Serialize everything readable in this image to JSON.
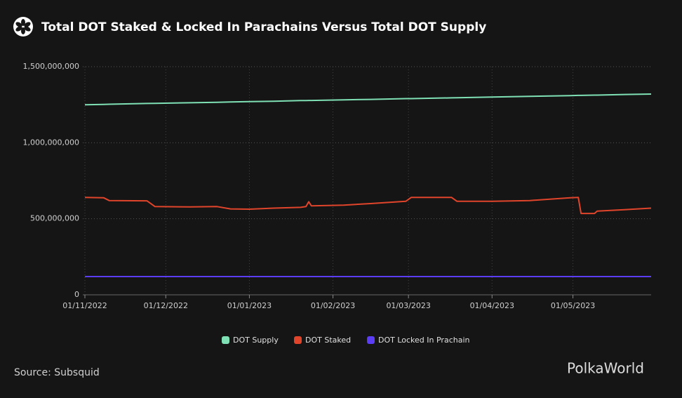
{
  "chart_data": {
    "type": "line",
    "title": "Total DOT Staked & Locked In Parachains Versus Total DOT Supply",
    "source": "Source: Subsquid",
    "watermark": "PolkaWorld",
    "x": [
      "01/11/2022",
      "08/11/2022",
      "10/11/2022",
      "24/11/2022",
      "27/11/2022",
      "10/12/2022",
      "20/12/2022",
      "25/12/2022",
      "01/01/2023",
      "10/01/2023",
      "20/01/2023",
      "22/01/2023",
      "23/01/2023",
      "24/01/2023",
      "05/02/2023",
      "15/02/2023",
      "28/02/2023",
      "02/03/2023",
      "17/03/2023",
      "19/03/2023",
      "01/04/2023",
      "15/04/2023",
      "30/04/2023",
      "03/05/2023",
      "04/05/2023",
      "09/05/2023",
      "10/05/2023",
      "20/05/2023",
      "30/05/2023"
    ],
    "xlim": [
      "01/11/2022",
      "30/05/2023"
    ],
    "xticks": [
      "01/11/2022",
      "01/12/2022",
      "01/01/2023",
      "01/02/2023",
      "01/03/2023",
      "01/04/2023",
      "01/05/2023"
    ],
    "ylim": [
      0,
      1500000000
    ],
    "yticks": [
      0,
      {
        "value": 500000000,
        "label": "500,000,000"
      },
      {
        "value": 1000000000,
        "label": "1,000,000,000"
      },
      {
        "value": 1500000000,
        "label": "1,500,000,000"
      }
    ],
    "grid": true,
    "legend": "bottom",
    "series": [
      {
        "name": "DOT Supply",
        "color": "#7ee0b4",
        "values": [
          1250000000,
          1252000000,
          1253000000,
          1258000000,
          1259000000,
          1263000000,
          1266000000,
          1268000000,
          1270000000,
          1273000000,
          1277000000,
          1277000000,
          1278000000,
          1278000000,
          1282000000,
          1285000000,
          1290000000,
          1290000000,
          1295000000,
          1296000000,
          1300000000,
          1305000000,
          1310000000,
          1311000000,
          1311000000,
          1313000000,
          1313000000,
          1317000000,
          1320000000
        ]
      },
      {
        "name": "DOT Staked",
        "color": "#e0452b",
        "values": [
          640000000,
          638000000,
          620000000,
          618000000,
          580000000,
          578000000,
          580000000,
          565000000,
          563000000,
          570000000,
          575000000,
          580000000,
          612000000,
          585000000,
          590000000,
          600000000,
          615000000,
          640000000,
          640000000,
          615000000,
          615000000,
          620000000,
          638000000,
          640000000,
          535000000,
          535000000,
          550000000,
          560000000,
          570000000
        ]
      },
      {
        "name": "DOT Locked In Prachain",
        "color": "#5b3df5",
        "values": [
          120000000,
          120000000,
          120000000,
          120000000,
          120000000,
          120000000,
          120000000,
          120000000,
          120000000,
          120000000,
          120000000,
          120000000,
          120000000,
          120000000,
          120000000,
          120000000,
          120000000,
          120000000,
          120000000,
          120000000,
          120000000,
          120000000,
          120000000,
          120000000,
          120000000,
          120000000,
          120000000,
          120000000,
          120000000
        ]
      }
    ]
  }
}
